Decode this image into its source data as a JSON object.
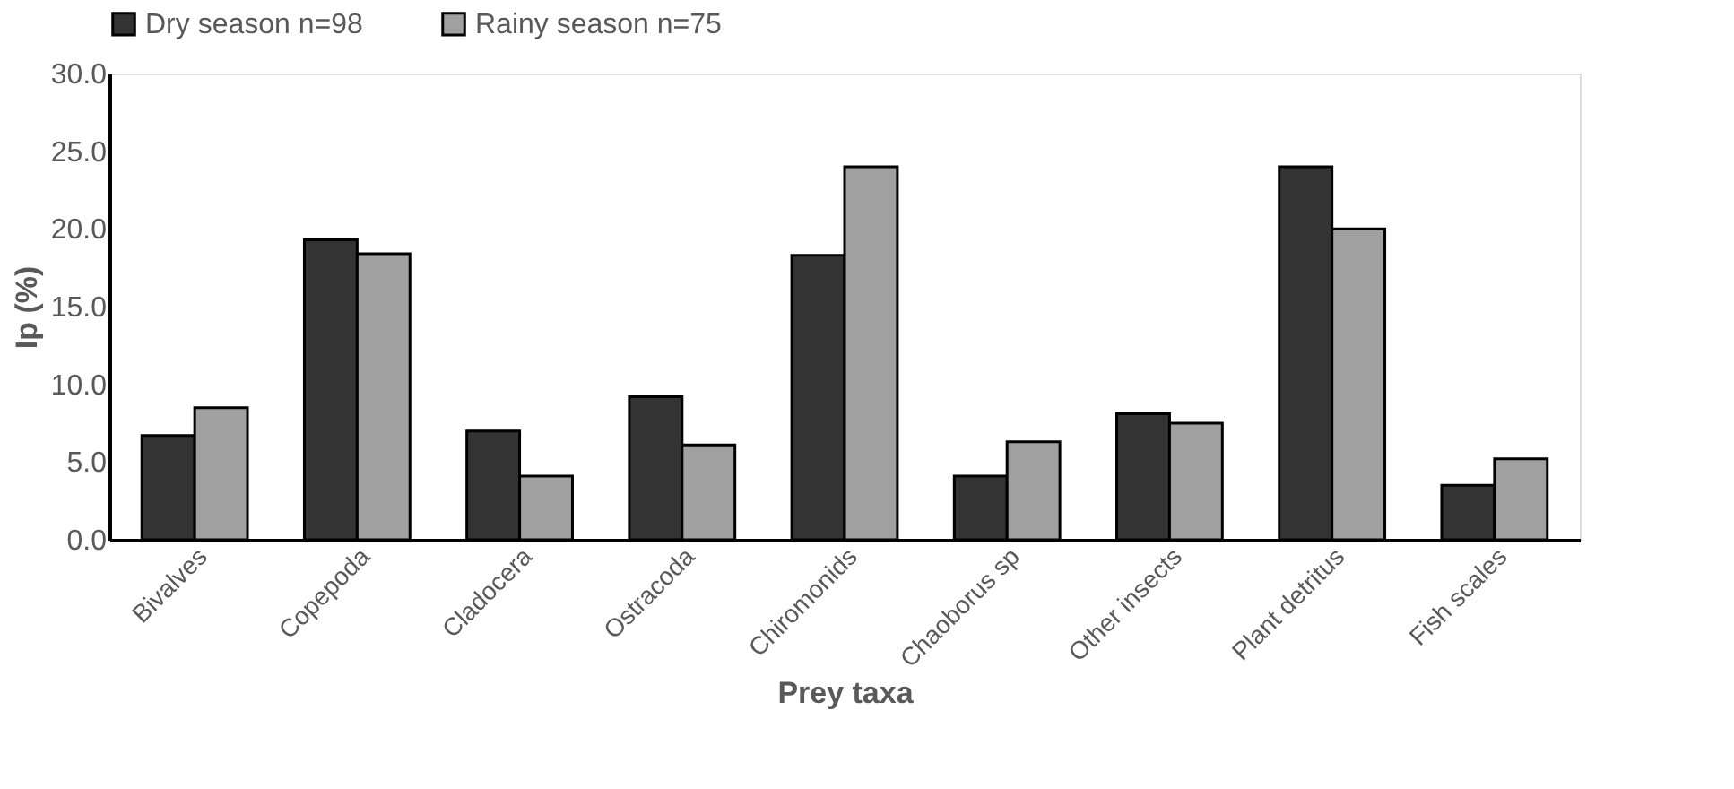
{
  "chart_data": {
    "type": "bar",
    "xlabel": "Prey taxa",
    "ylabel": "Ip (%)",
    "categories": [
      "Bivalves",
      "Copepoda",
      "Cladocera",
      "Ostracoda",
      "Chiromonids",
      "Chaoborus sp",
      "Other insects",
      "Plant detritus",
      "Fish scales"
    ],
    "series": [
      {
        "name": "Dry season n=98",
        "color": "#333333",
        "values": [
          6.7,
          19.3,
          7.0,
          9.2,
          18.3,
          4.1,
          8.1,
          24.0,
          3.5
        ]
      },
      {
        "name": "Rainy season n=75",
        "color": "#a0a0a0",
        "values": [
          8.5,
          18.4,
          4.1,
          6.1,
          24.0,
          6.3,
          7.5,
          20.0,
          5.2
        ]
      }
    ],
    "ylim": [
      0,
      30
    ],
    "yticks": [
      {
        "value": 0,
        "label": "0.0"
      },
      {
        "value": 5,
        "label": "5.0"
      },
      {
        "value": 10,
        "label": "10.0"
      },
      {
        "value": 15,
        "label": "15.0"
      },
      {
        "value": 20,
        "label": "20.0"
      },
      {
        "value": 25,
        "label": "25.0"
      },
      {
        "value": 30,
        "label": "30.0"
      }
    ],
    "grid": false,
    "legend": "top"
  }
}
